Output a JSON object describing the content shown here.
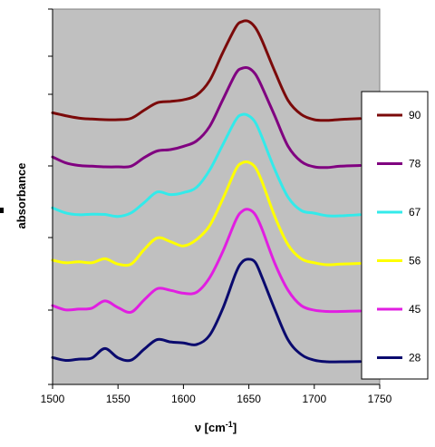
{
  "chart_data": {
    "type": "line",
    "xlabel": "ν [cm-1]",
    "xlabel_main": "ν [cm",
    "xlabel_sup": "-1",
    "xlabel_close": "]",
    "ylabel": "absorbance",
    "xlim": [
      1500,
      1750
    ],
    "x_ticks": [
      1500,
      1550,
      1600,
      1650,
      1700,
      1750
    ],
    "y_axis_tick_labels": "none",
    "plot_background": "#c0c0c0",
    "grid": false,
    "legend_position": "right",
    "x": [
      1500,
      1510,
      1520,
      1530,
      1540,
      1550,
      1560,
      1570,
      1580,
      1590,
      1600,
      1610,
      1620,
      1630,
      1640,
      1645,
      1650,
      1655,
      1660,
      1670,
      1680,
      1690,
      1700,
      1710,
      1720,
      1735
    ],
    "series": [
      {
        "name": "28",
        "color": "#0a0a6e",
        "values": [
          0.32,
          0.1,
          0.2,
          0.28,
          1.0,
          0.3,
          0.12,
          0.95,
          1.68,
          1.5,
          1.42,
          1.3,
          2.0,
          4.0,
          6.7,
          7.55,
          7.75,
          7.5,
          6.4,
          3.9,
          1.65,
          0.55,
          0.12,
          0.0,
          0.0,
          0.02
        ]
      },
      {
        "name": "45",
        "color": "#e11ee1",
        "values": [
          0.55,
          0.22,
          0.28,
          0.35,
          0.9,
          0.4,
          0.05,
          0.98,
          1.82,
          1.7,
          1.48,
          1.55,
          2.65,
          4.6,
          7.0,
          7.68,
          7.8,
          7.4,
          6.35,
          3.7,
          1.7,
          0.55,
          0.2,
          0.1,
          0.1,
          0.14
        ]
      },
      {
        "name": "56",
        "color": "#ffff00",
        "values": [
          0.35,
          0.15,
          0.22,
          0.15,
          0.45,
          0.05,
          0.05,
          1.15,
          2.03,
          1.75,
          1.42,
          1.9,
          2.95,
          4.95,
          7.2,
          7.7,
          7.73,
          7.35,
          6.3,
          3.6,
          1.5,
          0.45,
          0.15,
          0.0,
          0.05,
          0.1
        ]
      },
      {
        "name": "67",
        "color": "#33eaea",
        "values": [
          0.6,
          0.22,
          0.08,
          0.12,
          0.1,
          -0.05,
          0.22,
          1.0,
          1.8,
          1.6,
          1.75,
          2.15,
          3.45,
          5.35,
          7.25,
          7.65,
          7.55,
          7.05,
          5.95,
          3.45,
          1.4,
          0.4,
          0.2,
          0.0,
          0.0,
          0.08
        ]
      },
      {
        "name": "78",
        "color": "#800080",
        "values": [
          0.75,
          0.3,
          0.1,
          0.05,
          0.0,
          0.0,
          0.05,
          0.7,
          1.2,
          1.3,
          1.55,
          1.95,
          3.05,
          5.05,
          7.05,
          7.45,
          7.45,
          7.0,
          6.05,
          3.8,
          1.55,
          0.4,
          0.0,
          -0.05,
          0.05,
          0.1
        ]
      },
      {
        "name": "90",
        "color": "#7b0a0a",
        "values": [
          0.52,
          0.3,
          0.12,
          0.05,
          0.0,
          0.0,
          0.1,
          0.72,
          1.28,
          1.38,
          1.5,
          1.85,
          2.95,
          5.05,
          7.0,
          7.42,
          7.42,
          6.95,
          6.0,
          3.6,
          1.45,
          0.4,
          0.0,
          -0.05,
          0.02,
          0.08
        ]
      }
    ]
  }
}
